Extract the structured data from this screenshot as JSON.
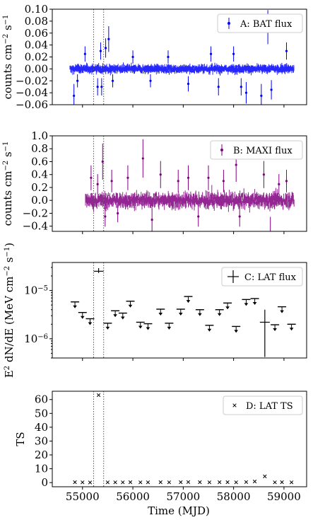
{
  "figure": {
    "x_axis": {
      "label": "Time (MJD)",
      "range": [
        54400,
        59450
      ],
      "ticks": [
        55000,
        56000,
        57000,
        58000,
        59000
      ]
    },
    "vlines": [
      55220,
      55420
    ]
  },
  "chart_data": [
    {
      "id": "A",
      "type": "scatter",
      "legend": "A: BAT flux",
      "color": "#0000ff",
      "ylabel_html": "counts cm<tspan baseline-shift='super' font-size='10'>−2</tspan> s<tspan baseline-shift='super' font-size='10'>−1</tspan>",
      "ylim": [
        -0.06,
        0.1
      ],
      "yticks": [
        "0.10",
        "0.08",
        "0.06",
        "0.04",
        "0.02",
        "0.00",
        "−0.02",
        "−0.04",
        "−0.06"
      ],
      "ytick_values": [
        0.1,
        0.08,
        0.06,
        0.04,
        0.02,
        0.0,
        -0.02,
        -0.04,
        -0.06
      ],
      "x_start": 54750,
      "x_end": 59200,
      "spikes": [
        [
          54830,
          -0.045
        ],
        [
          54900,
          -0.02
        ],
        [
          55050,
          0.025
        ],
        [
          55300,
          -0.03
        ],
        [
          55360,
          0.03
        ],
        [
          55380,
          -0.03
        ],
        [
          55460,
          0.035
        ],
        [
          55520,
          0.05
        ],
        [
          55600,
          -0.02
        ],
        [
          56000,
          0.02
        ],
        [
          56350,
          -0.02
        ],
        [
          56700,
          0.02
        ],
        [
          57100,
          -0.025
        ],
        [
          57550,
          0.025
        ],
        [
          57700,
          -0.03
        ],
        [
          58000,
          0.025
        ],
        [
          58150,
          -0.03
        ],
        [
          58250,
          -0.04
        ],
        [
          58550,
          -0.045
        ],
        [
          58680,
          0.07
        ],
        [
          58750,
          -0.035
        ],
        [
          59050,
          0.03
        ]
      ]
    },
    {
      "id": "B",
      "type": "scatter",
      "legend": "B: MAXI flux",
      "color": "#800080",
      "ylabel_html": "counts cm<tspan baseline-shift='super' font-size='10'>−2</tspan> s<tspan baseline-shift='super' font-size='10'>−1</tspan>",
      "ylim": [
        -0.48,
        1.0
      ],
      "yticks": [
        "1.0",
        "0.8",
        "0.6",
        "0.4",
        "0.2",
        "0.0",
        "−0.2",
        "−0.4"
      ],
      "ytick_values": [
        1.0,
        0.8,
        0.6,
        0.4,
        0.2,
        0.0,
        -0.2,
        -0.4
      ],
      "x_start": 55060,
      "x_end": 59200,
      "spikes": [
        [
          55170,
          0.35
        ],
        [
          55300,
          0.25
        ],
        [
          55400,
          0.6
        ],
        [
          55450,
          -0.25
        ],
        [
          55580,
          0.3
        ],
        [
          55700,
          -0.2
        ],
        [
          55900,
          0.35
        ],
        [
          56200,
          0.65
        ],
        [
          56380,
          -0.3
        ],
        [
          56550,
          0.4
        ],
        [
          56900,
          0.3
        ],
        [
          57100,
          0.35
        ],
        [
          57300,
          -0.25
        ],
        [
          57500,
          0.35
        ],
        [
          57800,
          0.3
        ],
        [
          58050,
          0.55
        ],
        [
          58120,
          -0.25
        ],
        [
          58600,
          0.4
        ],
        [
          58730,
          -0.5
        ],
        [
          58900,
          0.25
        ],
        [
          59050,
          0.3
        ]
      ]
    },
    {
      "id": "C",
      "type": "scatter",
      "legend": "C: LAT flux",
      "color": "#000000",
      "ylabel_html": "E<tspan baseline-shift='super' font-size='10'>2</tspan> dN/dE (MeV cm<tspan baseline-shift='super' font-size='10'>−2</tspan> s<tspan baseline-shift='super' font-size='10'>−1</tspan>)",
      "yscale": "log",
      "ylim": [
        4e-07,
        3.8e-05
      ],
      "yticks_major": [
        1e-05,
        1e-06
      ],
      "upper_limits": [
        [
          54850,
          5.8e-06
        ],
        [
          55000,
          3.5e-06
        ],
        [
          55150,
          2.6e-06
        ],
        [
          55500,
          2.1e-06
        ],
        [
          55650,
          3.8e-06
        ],
        [
          55800,
          3.4e-06
        ],
        [
          55950,
          6e-06
        ],
        [
          56150,
          2.2e-06
        ],
        [
          56300,
          2.05e-06
        ],
        [
          56550,
          4.1e-06
        ],
        [
          56720,
          2.1e-06
        ],
        [
          56950,
          4.1e-06
        ],
        [
          57100,
          7.5e-06
        ],
        [
          57330,
          4e-06
        ],
        [
          57520,
          1.9e-06
        ],
        [
          57720,
          4e-06
        ],
        [
          57880,
          5.5e-06
        ],
        [
          58050,
          1.8e-06
        ],
        [
          58250,
          6.5e-06
        ],
        [
          58420,
          6.8e-06
        ],
        [
          58820,
          1.95e-06
        ],
        [
          58960,
          4.6e-06
        ],
        [
          59150,
          2e-06
        ]
      ],
      "detections": [
        [
          55320,
          2.5e-05,
          4e-06,
          2e-06
        ],
        [
          58620,
          2.2e-06,
          1.8e-06,
          1.8e-06
        ]
      ]
    },
    {
      "id": "D",
      "type": "scatter",
      "legend": "D: LAT TS",
      "color": "#000000",
      "ylabel_html": "TS",
      "ylim": [
        -3,
        66
      ],
      "yticks": [
        "60",
        "50",
        "40",
        "30",
        "20",
        "10",
        "0"
      ],
      "ytick_values": [
        60,
        50,
        40,
        30,
        20,
        10,
        0
      ],
      "points": [
        [
          54850,
          0.3
        ],
        [
          55000,
          0.2
        ],
        [
          55150,
          0.1
        ],
        [
          55320,
          63.2
        ],
        [
          55500,
          0.2
        ],
        [
          55650,
          0.2
        ],
        [
          55800,
          0.2
        ],
        [
          55950,
          0.3
        ],
        [
          56150,
          0.2
        ],
        [
          56300,
          0.2
        ],
        [
          56550,
          0.3
        ],
        [
          56720,
          0.2
        ],
        [
          56950,
          0.3
        ],
        [
          57100,
          0.4
        ],
        [
          57330,
          0.3
        ],
        [
          57520,
          0.2
        ],
        [
          57720,
          0.3
        ],
        [
          57880,
          0.3
        ],
        [
          58050,
          0.2
        ],
        [
          58250,
          0.4
        ],
        [
          58420,
          0.8
        ],
        [
          58620,
          4.5
        ],
        [
          58820,
          0.2
        ],
        [
          58960,
          0.3
        ],
        [
          59150,
          0.2
        ]
      ]
    }
  ]
}
